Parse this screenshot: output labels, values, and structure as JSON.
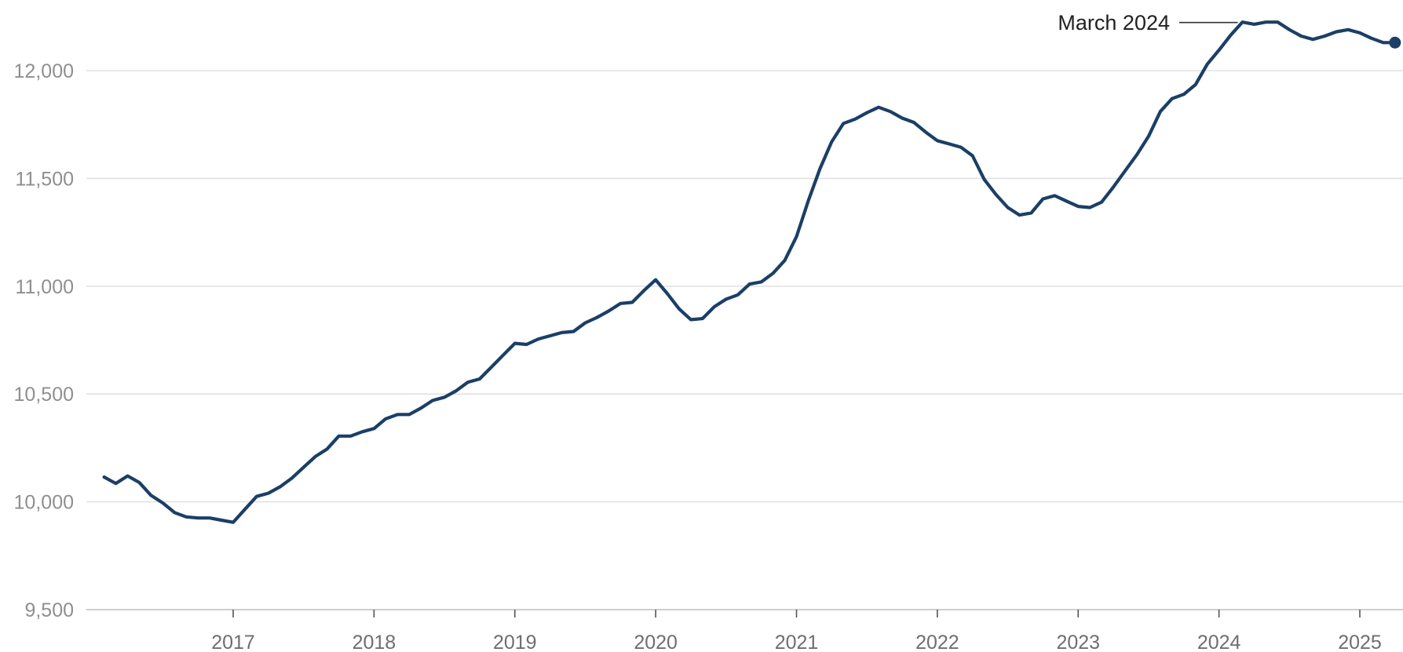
{
  "chart_data": {
    "type": "line",
    "title": "",
    "xlabel": "",
    "ylabel": "",
    "ylim": [
      9500,
      12250
    ],
    "xlim": [
      "2016-01",
      "2025-04"
    ],
    "yticks": [
      9500,
      10000,
      10500,
      11000,
      11500,
      12000
    ],
    "ytick_labels": [
      "9,500",
      "10,000",
      "10,500",
      "11,000",
      "11,500",
      "12,000"
    ],
    "xticks": [
      "2017-01",
      "2018-01",
      "2019-01",
      "2020-01",
      "2021-01",
      "2022-01",
      "2023-01",
      "2024-01",
      "2025-01"
    ],
    "xtick_labels": [
      "2017",
      "2018",
      "2019",
      "2020",
      "2021",
      "2022",
      "2023",
      "2024",
      "2025"
    ],
    "grid": true,
    "line_color": "#1b3f66",
    "annotation": {
      "label": "March 2024",
      "x": "2024-03",
      "y": 12225
    },
    "series": [
      {
        "x": [
          "2016-02",
          "2016-03",
          "2016-04",
          "2016-05",
          "2016-06",
          "2016-07",
          "2016-08",
          "2016-09",
          "2016-10",
          "2016-11",
          "2016-12",
          "2017-01",
          "2017-02",
          "2017-03",
          "2017-04",
          "2017-05",
          "2017-06",
          "2017-07",
          "2017-08",
          "2017-09",
          "2017-10",
          "2017-11",
          "2017-12",
          "2018-01",
          "2018-02",
          "2018-03",
          "2018-04",
          "2018-05",
          "2018-06",
          "2018-07",
          "2018-08",
          "2018-09",
          "2018-10",
          "2018-11",
          "2018-12",
          "2019-01",
          "2019-02",
          "2019-03",
          "2019-04",
          "2019-05",
          "2019-06",
          "2019-07",
          "2019-08",
          "2019-09",
          "2019-10",
          "2019-11",
          "2019-12",
          "2020-01",
          "2020-02",
          "2020-03",
          "2020-04",
          "2020-05",
          "2020-06",
          "2020-07",
          "2020-08",
          "2020-09",
          "2020-10",
          "2020-11",
          "2020-12",
          "2021-01",
          "2021-02",
          "2021-03",
          "2021-04",
          "2021-05",
          "2021-06",
          "2021-07",
          "2021-08",
          "2021-09",
          "2021-10",
          "2021-11",
          "2021-12",
          "2022-01",
          "2022-02",
          "2022-03",
          "2022-04",
          "2022-05",
          "2022-06",
          "2022-07",
          "2022-08",
          "2022-09",
          "2022-10",
          "2022-11",
          "2022-12",
          "2023-01",
          "2023-02",
          "2023-03",
          "2023-04",
          "2023-05",
          "2023-06",
          "2023-07",
          "2023-08",
          "2023-09",
          "2023-10",
          "2023-11",
          "2023-12",
          "2024-01",
          "2024-02",
          "2024-03",
          "2024-04",
          "2024-05",
          "2024-06",
          "2024-07",
          "2024-08",
          "2024-09",
          "2024-10",
          "2024-11",
          "2024-12",
          "2025-01",
          "2025-02",
          "2025-03",
          "2025-04"
        ],
        "y": [
          10115,
          10085,
          10120,
          10090,
          10030,
          9995,
          9950,
          9930,
          9925,
          9925,
          9915,
          9905,
          9965,
          10025,
          10040,
          10070,
          10110,
          10160,
          10210,
          10245,
          10305,
          10305,
          10325,
          10340,
          10385,
          10405,
          10405,
          10435,
          10470,
          10485,
          10515,
          10555,
          10570,
          10625,
          10680,
          10735,
          10730,
          10755,
          10770,
          10785,
          10790,
          10830,
          10855,
          10885,
          10920,
          10925,
          10980,
          11030,
          10965,
          10895,
          10845,
          10850,
          10905,
          10940,
          10960,
          11010,
          11020,
          11060,
          11120,
          11230,
          11395,
          11545,
          11670,
          11755,
          11775,
          11805,
          11830,
          11810,
          11780,
          11760,
          11715,
          11675,
          11660,
          11645,
          11605,
          11495,
          11425,
          11365,
          11330,
          11340,
          11405,
          11420,
          11395,
          11370,
          11365,
          11390,
          11460,
          11535,
          11610,
          11695,
          11810,
          11870,
          11890,
          11935,
          12030,
          12095,
          12165,
          12225,
          12215,
          12225,
          12225,
          12190,
          12160,
          12145,
          12160,
          12180,
          12190,
          12175,
          12150,
          12130,
          12130
        ]
      }
    ]
  }
}
